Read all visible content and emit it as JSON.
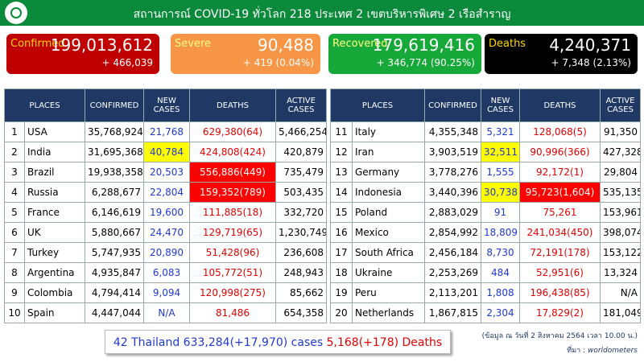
{
  "header": {
    "title": "สถานการณ์ COVID-19 ทั่วโลก 218 ประเทศ 2 เขตบริหารพิเศษ 2 เรือสำราญ"
  },
  "cards": [
    {
      "label": "Confirmed",
      "value": "199,013,612",
      "change": "+ 466,039"
    },
    {
      "label": "Severe",
      "value": "90,488",
      "change": "+ 419 (0.04%)"
    },
    {
      "label": "Recovered",
      "value": "179,619,416",
      "change": "+ 346,774 (90.25%)"
    },
    {
      "label": "Deaths",
      "value": "4,240,371",
      "change": "+ 7,348 (2.13%)"
    }
  ],
  "tables": [
    {
      "columns": [
        "PLACES",
        "CONFIRMED",
        "NEW CASES",
        "DEATHS",
        "ACTIVE CASES"
      ],
      "rows": [
        [
          "1",
          "USA",
          "35,768,924",
          "21,768",
          "629,380(64)",
          "5,466,254"
        ],
        [
          "2",
          "India",
          "31,695,368",
          "40,784",
          "424,808(424)",
          "420,879"
        ],
        [
          "3",
          "Brazil",
          "19,938,358",
          "20,503",
          "556,886(449)",
          "735,479"
        ],
        [
          "4",
          "Russia",
          "6,288,677",
          "22,804",
          "159,352(789)",
          "503,435"
        ],
        [
          "5",
          "France",
          "6,146,619",
          "19,600",
          "111,885(18)",
          "332,720"
        ],
        [
          "6",
          "UK",
          "5,880,667",
          "24,470",
          "129,719(65)",
          "1,230,749"
        ],
        [
          "7",
          "Turkey",
          "5,747,935",
          "20,890",
          "51,428(96)",
          "236,608"
        ],
        [
          "8",
          "Argentina",
          "4,935,847",
          "6,083",
          "105,772(51)",
          "248,943"
        ],
        [
          "9",
          "Colombia",
          "4,794,414",
          "9,094",
          "120,998(275)",
          "85,662"
        ],
        [
          "10",
          "Spain",
          "4,447,044",
          "N/A",
          "81,486",
          "654,358"
        ]
      ]
    },
    {
      "columns": [
        "PLACES",
        "CONFIRMED",
        "NEW CASES",
        "DEATHS",
        "ACTIVE CASES"
      ],
      "rows": [
        [
          "11",
          "Italy",
          "4,355,348",
          "5,321",
          "128,068(5)",
          "91,350"
        ],
        [
          "12",
          "Iran",
          "3,903,519",
          "32,511",
          "90,996(366)",
          "427,328"
        ],
        [
          "13",
          "Germany",
          "3,778,276",
          "1,555",
          "92,172(1)",
          "29,804"
        ],
        [
          "14",
          "Indonesia",
          "3,440,396",
          "30,738",
          "95,723(1,604)",
          "535,135"
        ],
        [
          "15",
          "Poland",
          "2,883,029",
          "91",
          "75,261",
          "153,961"
        ],
        [
          "16",
          "Mexico",
          "2,854,992",
          "18,809",
          "241,034(450)",
          "398,074"
        ],
        [
          "17",
          "South Africa",
          "2,456,184",
          "8,730",
          "72,191(178)",
          "153,122"
        ],
        [
          "18",
          "Ukraine",
          "2,253,269",
          "484",
          "52,951(6)",
          "13,324"
        ],
        [
          "19",
          "Peru",
          "2,113,201",
          "1,808",
          "196,438(85)",
          "N/A"
        ],
        [
          "20",
          "Netherlands",
          "1,867,815",
          "2,304",
          "17,829(2)",
          "181,049"
        ]
      ]
    }
  ],
  "thailand": {
    "cases": "42 Thailand 633,284(+17,970) cases",
    "deaths": "5,168(+178) Deaths"
  },
  "notes": {
    "date": "(ข้อมูล ณ วันที่ 2 สิงหาคม 2564 เวลา 10.00 น.)",
    "source_label": "ที่มา :",
    "source": "worldometers"
  }
}
